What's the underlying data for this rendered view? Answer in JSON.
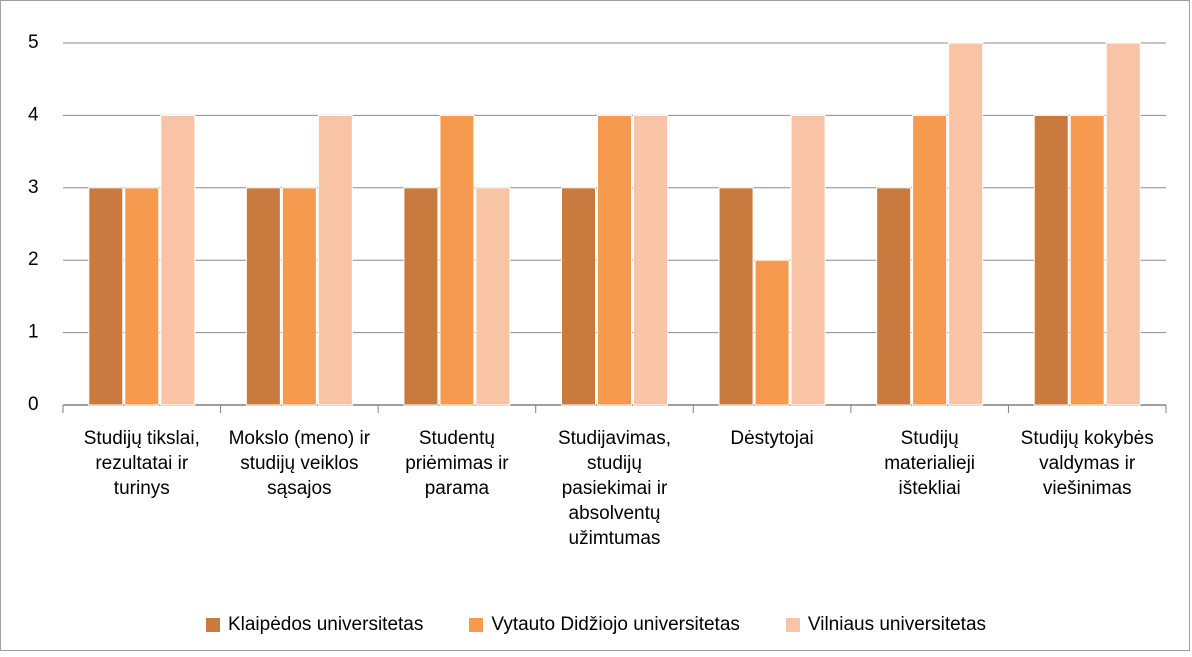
{
  "chart_data": {
    "type": "bar",
    "categories": [
      "Studijų tikslai, rezultatai ir turinys",
      "Mokslo (meno) ir studijų veiklos sąsajos",
      "Studentų priėmimas ir parama",
      "Studijavimas, studijų pasiekimai ir absolventų užimtumas",
      "Dėstytojai",
      "Studijų materialieji ištekliai",
      "Studijų kokybės valdymas ir viešinimas"
    ],
    "series": [
      {
        "name": "Klaipėdos universitetas",
        "color": "#c97a3e",
        "values": [
          3,
          3,
          3,
          3,
          3,
          3,
          4
        ]
      },
      {
        "name": "Vytauto Didžiojo universitetas",
        "color": "#f59a4e",
        "values": [
          3,
          3,
          4,
          4,
          2,
          4,
          4
        ]
      },
      {
        "name": "Vilniaus universitetas",
        "color": "#f9c3a6",
        "values": [
          4,
          4,
          3,
          4,
          4,
          5,
          5
        ]
      }
    ],
    "ylim": [
      0,
      5
    ],
    "yticks": [
      0,
      1,
      2,
      3,
      4,
      5
    ],
    "grid": true,
    "legend": "bottom"
  }
}
